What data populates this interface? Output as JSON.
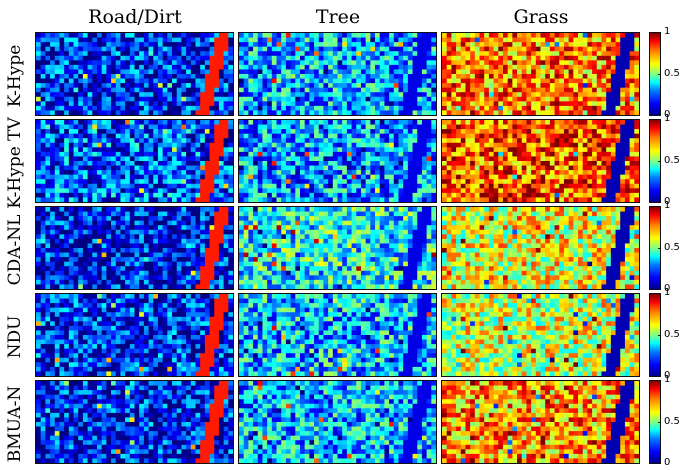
{
  "chart_data": {
    "type": "heatmap",
    "columns": [
      "Road/Dirt",
      "Tree",
      "Grass"
    ],
    "rows": [
      "K-Hype",
      "K-Hype TV",
      "CDA-NL",
      "NDU",
      "BMUA-N"
    ],
    "colorbar": {
      "ticks": [
        "1",
        "0.5",
        "0"
      ],
      "range": [
        0,
        1
      ],
      "colormap": "jet"
    },
    "mean_abundance": {
      "Road/Dirt": [
        0.15,
        0.2,
        0.12,
        0.15,
        0.14
      ],
      "Tree": [
        0.3,
        0.28,
        0.38,
        0.32,
        0.3
      ],
      "Grass": [
        0.75,
        0.8,
        0.6,
        0.58,
        0.72
      ]
    }
  },
  "colors": {
    "jet_low": "#000090",
    "jet_mid": "#80ff80",
    "jet_high": "#800000",
    "panel_border": "#111111"
  }
}
